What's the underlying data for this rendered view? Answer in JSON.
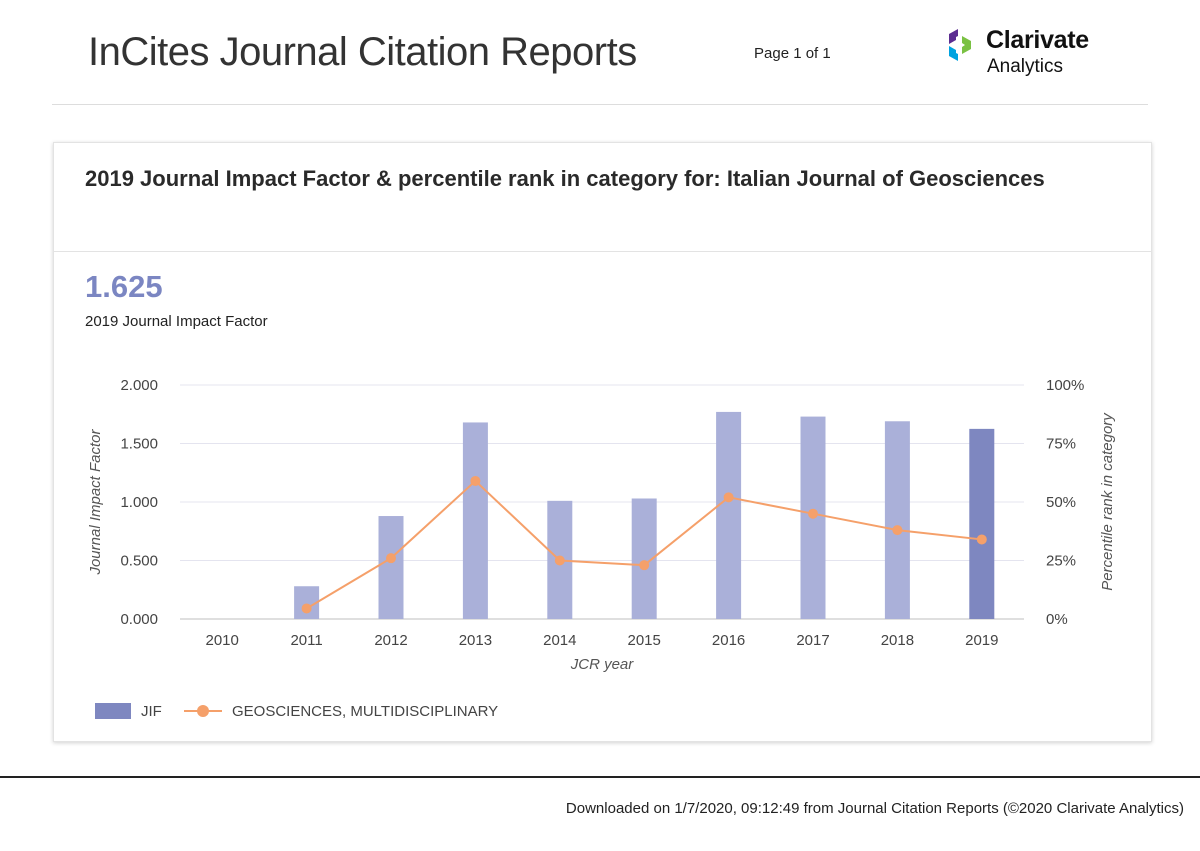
{
  "header": {
    "title": "InCites Journal Citation Reports",
    "page_indicator": "Page 1 of 1",
    "logo": {
      "brand": "Clarivate",
      "sub": "Analytics",
      "colors": [
        "#5c2d91",
        "#00a3e0",
        "#7ac143"
      ]
    }
  },
  "card": {
    "title": "2019 Journal Impact Factor & percentile rank in category for: Italian Journal of Geosciences",
    "jif_value": "1.625",
    "jif_label": "2019 Journal Impact Factor"
  },
  "chart_data": {
    "type": "bar",
    "categories": [
      "2010",
      "2011",
      "2012",
      "2013",
      "2014",
      "2015",
      "2016",
      "2017",
      "2018",
      "2019"
    ],
    "xlabel": "JCR year",
    "ylabel": "Journal Impact Factor",
    "y2label": "Percentile rank in category",
    "ylim": [
      0,
      2
    ],
    "y2lim": [
      0,
      100
    ],
    "y_ticks": [
      "0.000",
      "0.500",
      "1.000",
      "1.500",
      "2.000"
    ],
    "y_tick_values": [
      0,
      0.5,
      1,
      1.5,
      2
    ],
    "y2_ticks": [
      "0%",
      "25%",
      "50%",
      "75%",
      "100%"
    ],
    "y2_tick_values": [
      0,
      25,
      50,
      75,
      100
    ],
    "grid": true,
    "legend_position": "bottom-left",
    "series": [
      {
        "name": "JIF",
        "type": "bar",
        "axis": "left",
        "values": [
          null,
          0.28,
          0.88,
          1.68,
          1.01,
          1.03,
          1.77,
          1.73,
          1.69,
          1.625
        ],
        "color": "#aab0d9",
        "highlight_color": "#7e87c0",
        "highlight_index": 9
      },
      {
        "name": "GEOSCIENCES, MULTIDISCIPLINARY",
        "type": "line",
        "axis": "right",
        "values": [
          null,
          4.5,
          26,
          59,
          25,
          23,
          52,
          45,
          38,
          34
        ],
        "color": "#f5a06a"
      }
    ]
  },
  "footer": {
    "text": "Downloaded on 1/7/2020, 09:12:49 from Journal Citation Reports (©2020 Clarivate Analytics)"
  }
}
